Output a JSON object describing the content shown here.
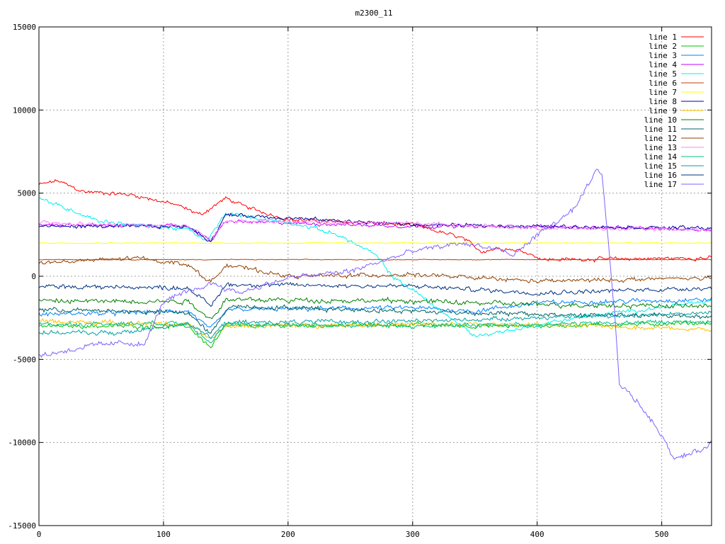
{
  "chart_data": {
    "type": "line",
    "title": "m2300_11",
    "xlabel": "",
    "ylabel": "",
    "xlim": [
      0,
      540
    ],
    "ylim": [
      -15000,
      15000
    ],
    "xticks": [
      0,
      100,
      200,
      300,
      400,
      500
    ],
    "yticks": [
      -15000,
      -10000,
      -5000,
      0,
      5000,
      10000,
      15000
    ],
    "grid": true,
    "legend_position": "top-right",
    "series": [
      {
        "name": "line 1",
        "color": "#ff0000",
        "base": [
          [
            0,
            5500
          ],
          [
            15,
            5750
          ],
          [
            35,
            5100
          ],
          [
            75,
            4900
          ],
          [
            110,
            4300
          ],
          [
            130,
            3700
          ],
          [
            150,
            4700
          ],
          [
            165,
            4200
          ],
          [
            200,
            3400
          ],
          [
            230,
            3300
          ],
          [
            300,
            3100
          ],
          [
            340,
            2300
          ],
          [
            355,
            1500
          ],
          [
            370,
            1700
          ],
          [
            390,
            1500
          ],
          [
            405,
            1000
          ],
          [
            540,
            1100
          ]
        ],
        "noise": 130
      },
      {
        "name": "line 2",
        "color": "#00c000",
        "base": [
          [
            0,
            -3000
          ],
          [
            120,
            -3000
          ],
          [
            138,
            -4300
          ],
          [
            150,
            -3000
          ],
          [
            300,
            -2900
          ],
          [
            350,
            -3000
          ],
          [
            400,
            -3000
          ],
          [
            540,
            -2800
          ]
        ],
        "noise": 150
      },
      {
        "name": "line 3",
        "color": "#0080ff",
        "base": [
          [
            0,
            -2300
          ],
          [
            120,
            -2100
          ],
          [
            138,
            -3200
          ],
          [
            152,
            -2000
          ],
          [
            300,
            -1900
          ],
          [
            350,
            -2100
          ],
          [
            400,
            -1600
          ],
          [
            540,
            -1400
          ]
        ],
        "noise": 160
      },
      {
        "name": "line 4",
        "color": "#c000ff",
        "base": [
          [
            0,
            3100
          ],
          [
            120,
            3000
          ],
          [
            138,
            2100
          ],
          [
            150,
            3300
          ],
          [
            300,
            3000
          ],
          [
            400,
            3000
          ],
          [
            540,
            2800
          ]
        ],
        "noise": 120
      },
      {
        "name": "line 5",
        "color": "#00eeee",
        "base": [
          [
            0,
            4700
          ],
          [
            50,
            3300
          ],
          [
            120,
            2800
          ],
          [
            135,
            2100
          ],
          [
            150,
            3800
          ],
          [
            210,
            3100
          ],
          [
            240,
            2500
          ],
          [
            270,
            1300
          ],
          [
            285,
            -100
          ],
          [
            300,
            -800
          ],
          [
            350,
            -3600
          ],
          [
            390,
            -3100
          ],
          [
            430,
            -2500
          ],
          [
            540,
            -1500
          ]
        ],
        "noise": 130
      },
      {
        "name": "line 6",
        "color": "#c04000",
        "base": [
          [
            0,
            1000
          ],
          [
            540,
            1000
          ]
        ],
        "noise": 25
      },
      {
        "name": "line 7",
        "color": "#ffff00",
        "base": [
          [
            0,
            2000
          ],
          [
            540,
            2000
          ]
        ],
        "noise": 30
      },
      {
        "name": "line 8",
        "color": "#0000a0",
        "base": [
          [
            0,
            3000
          ],
          [
            120,
            3000
          ],
          [
            138,
            2100
          ],
          [
            150,
            3700
          ],
          [
            300,
            3100
          ],
          [
            400,
            3000
          ],
          [
            540,
            2900
          ]
        ],
        "noise": 120
      },
      {
        "name": "line 9",
        "color": "#ffc000",
        "base": [
          [
            0,
            -2700
          ],
          [
            120,
            -2900
          ],
          [
            138,
            -3800
          ],
          [
            150,
            -3000
          ],
          [
            300,
            -2900
          ],
          [
            400,
            -2900
          ],
          [
            540,
            -3200
          ]
        ],
        "noise": 150
      },
      {
        "name": "line 10",
        "color": "#008000",
        "base": [
          [
            0,
            -1500
          ],
          [
            120,
            -1500
          ],
          [
            138,
            -2600
          ],
          [
            150,
            -1400
          ],
          [
            300,
            -1500
          ],
          [
            400,
            -1700
          ],
          [
            540,
            -1800
          ]
        ],
        "noise": 170
      },
      {
        "name": "line 11",
        "color": "#006060",
        "base": [
          [
            0,
            -2000
          ],
          [
            120,
            -2200
          ],
          [
            138,
            -3500
          ],
          [
            152,
            -1800
          ],
          [
            300,
            -2100
          ],
          [
            400,
            -2300
          ],
          [
            540,
            -2400
          ]
        ],
        "noise": 160
      },
      {
        "name": "line 12",
        "color": "#904000",
        "base": [
          [
            0,
            800
          ],
          [
            80,
            1100
          ],
          [
            120,
            700
          ],
          [
            138,
            -400
          ],
          [
            150,
            700
          ],
          [
            200,
            0
          ],
          [
            300,
            100
          ],
          [
            400,
            -300
          ],
          [
            540,
            -100
          ]
        ],
        "noise": 140
      },
      {
        "name": "line 13",
        "color": "#ff80ff",
        "base": [
          [
            0,
            3200
          ],
          [
            120,
            3000
          ],
          [
            138,
            2300
          ],
          [
            150,
            3300
          ],
          [
            300,
            3200
          ],
          [
            400,
            2900
          ],
          [
            540,
            2800
          ]
        ],
        "noise": 120
      },
      {
        "name": "line 14",
        "color": "#00c080",
        "base": [
          [
            0,
            -2900
          ],
          [
            120,
            -2800
          ],
          [
            138,
            -4000
          ],
          [
            150,
            -2900
          ],
          [
            300,
            -3000
          ],
          [
            400,
            -2900
          ],
          [
            540,
            -2700
          ]
        ],
        "noise": 150
      },
      {
        "name": "line 15",
        "color": "#00a0a0",
        "base": [
          [
            0,
            -3400
          ],
          [
            70,
            -3400
          ],
          [
            120,
            -2800
          ],
          [
            138,
            -3700
          ],
          [
            150,
            -2800
          ],
          [
            300,
            -2700
          ],
          [
            400,
            -2500
          ],
          [
            540,
            -2200
          ]
        ],
        "noise": 150
      },
      {
        "name": "line 16",
        "color": "#003080",
        "base": [
          [
            0,
            -600
          ],
          [
            120,
            -700
          ],
          [
            138,
            -1800
          ],
          [
            150,
            -500
          ],
          [
            300,
            -600
          ],
          [
            400,
            -1000
          ],
          [
            540,
            -700
          ]
        ],
        "noise": 150
      },
      {
        "name": "line 17",
        "color": "#8060ff",
        "base": [
          [
            0,
            -4800
          ],
          [
            40,
            -4200
          ],
          [
            70,
            -4000
          ],
          [
            85,
            -4100
          ],
          [
            100,
            -1500
          ],
          [
            140,
            -400
          ],
          [
            160,
            -1000
          ],
          [
            200,
            -100
          ],
          [
            250,
            300
          ],
          [
            300,
            1500
          ],
          [
            340,
            2000
          ],
          [
            370,
            1600
          ],
          [
            380,
            1200
          ],
          [
            400,
            2500
          ],
          [
            430,
            4000
          ],
          [
            448,
            6400
          ],
          [
            452,
            6000
          ],
          [
            456,
            3000
          ],
          [
            462,
            -2000
          ],
          [
            466,
            -6500
          ],
          [
            480,
            -7500
          ],
          [
            500,
            -9500
          ],
          [
            510,
            -11000
          ],
          [
            530,
            -10500
          ],
          [
            540,
            -10000
          ]
        ],
        "noise": 180
      }
    ]
  }
}
